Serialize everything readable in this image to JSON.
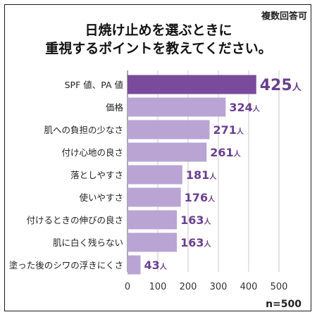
{
  "header": {
    "note": "複数回答可",
    "title_line1": "日焼け止めを選ぶときに",
    "title_line2": "重視するポイントを教えてください。"
  },
  "footer": {
    "n_label": "n=500"
  },
  "chart_data": {
    "type": "bar",
    "orientation": "horizontal",
    "categories": [
      "SPF 値、PA 値",
      "価格",
      "肌への負担の少なさ",
      "付け心地の良さ",
      "落としやすさ",
      "使いやすさ",
      "付けるときの伸びの良さ",
      "肌に白く残らない",
      "塗った後のシワの浮きにくさ"
    ],
    "values": [
      425,
      324,
      271,
      261,
      181,
      176,
      163,
      163,
      43
    ],
    "unit": "人",
    "xlim": [
      0,
      500
    ],
    "xticks": [
      0,
      100,
      200,
      300,
      400,
      500
    ],
    "grid": true,
    "colors": {
      "highlight": "#7a4a9c",
      "bar": "#b9a4d4",
      "label": "#6b3f8f"
    }
  }
}
